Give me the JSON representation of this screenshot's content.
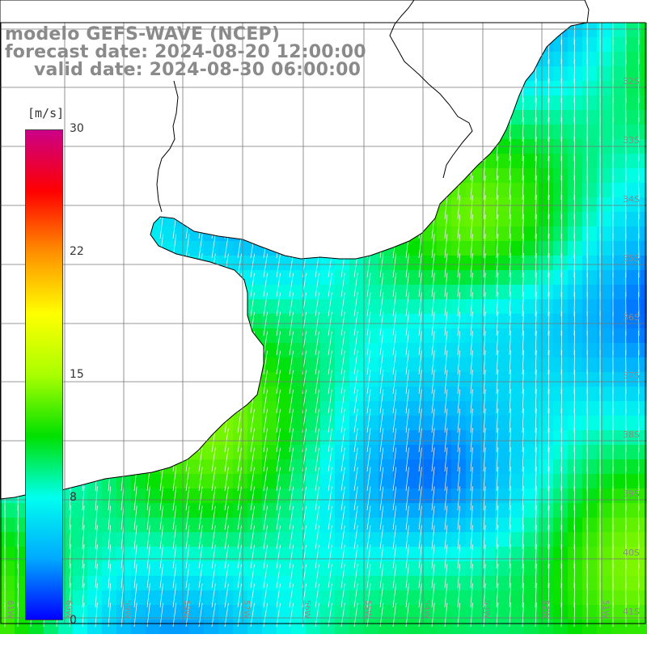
{
  "header": {
    "model": "modelo GEFS-WAVE (NCEP)",
    "forecast": "forecast date: 2024-08-20 12:00:00",
    "valid": "valid date: 2024-08-30 06:00:00"
  },
  "legend": {
    "unit": "[m/s]",
    "ticks": [
      "30",
      "22",
      "15",
      "8",
      "0"
    ],
    "tick_values": [
      30,
      22,
      15,
      8,
      0
    ],
    "colors": [
      "#0000ff",
      "#00aaff",
      "#00ffee",
      "#00e000",
      "#aaff00",
      "#ffff00",
      "#ff9000",
      "#ff0000",
      "#cc0088"
    ]
  },
  "map": {
    "lat_labels": [
      "32S",
      "33S",
      "34S",
      "35S",
      "36S",
      "37S",
      "38S",
      "39S",
      "40S",
      "41S"
    ],
    "lon_labels": [
      "61W",
      "60W",
      "59W",
      "58W",
      "57W",
      "56W",
      "55W",
      "54W",
      "53W",
      "52W",
      "51W"
    ],
    "land_color": "#ffffff",
    "coast_color": "#000000",
    "grid_color": "#777777",
    "arrow_color": "#ffffff"
  }
}
